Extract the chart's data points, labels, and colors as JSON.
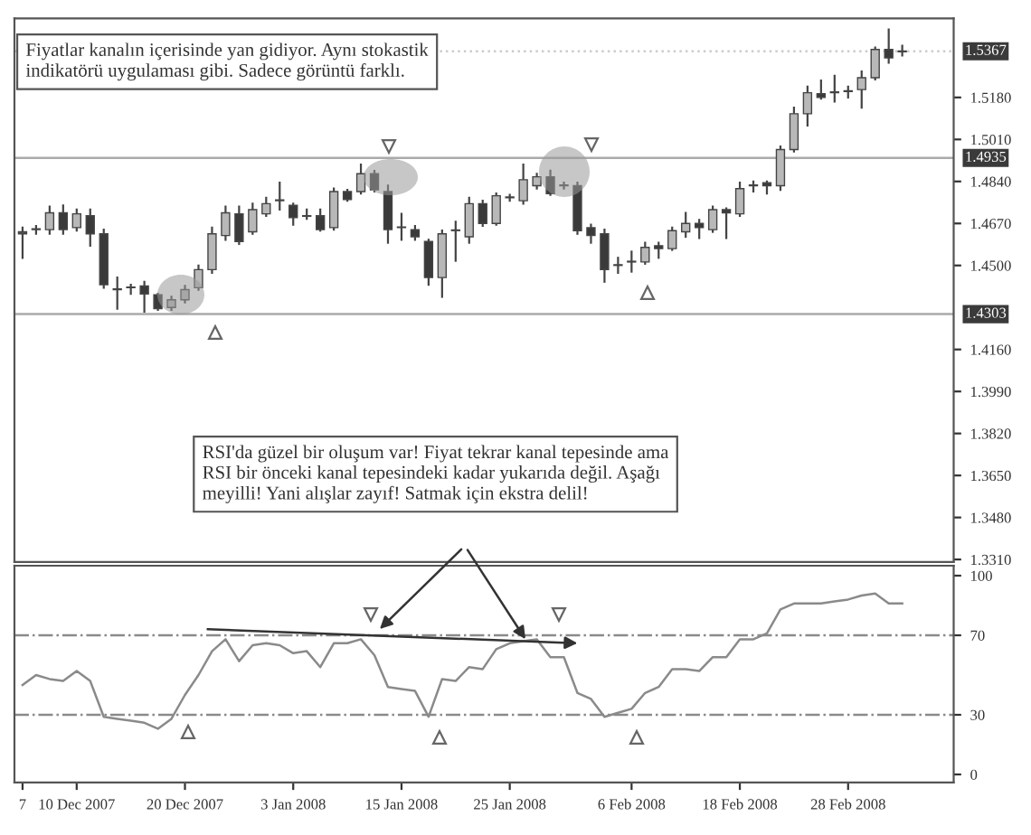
{
  "chart_data": [
    {
      "type": "candlestick",
      "ohlc": [
        [
          1.4628,
          1.4653,
          1.4531,
          1.4636
        ],
        [
          1.4645,
          1.466,
          1.4628,
          1.4648
        ],
        [
          1.4645,
          1.4738,
          1.4628,
          1.4713
        ],
        [
          1.4713,
          1.4743,
          1.4628,
          1.4645
        ],
        [
          1.4653,
          1.4726,
          1.4641,
          1.4709
        ],
        [
          1.4701,
          1.4726,
          1.458,
          1.4628
        ],
        [
          1.4628,
          1.4645,
          1.441,
          1.4422
        ],
        [
          1.4402,
          1.4451,
          1.4325,
          1.4405
        ],
        [
          1.441,
          1.4422,
          1.4385,
          1.4412
        ],
        [
          1.4417,
          1.4434,
          1.4313,
          1.4385
        ],
        [
          1.4381,
          1.4385,
          1.432,
          1.4325
        ],
        [
          1.433,
          1.4373,
          1.432,
          1.4361
        ],
        [
          1.4361,
          1.4417,
          1.435,
          1.4402
        ],
        [
          1.441,
          1.45,
          1.4402,
          1.4483
        ],
        [
          1.4483,
          1.4653,
          1.447,
          1.4628
        ],
        [
          1.4621,
          1.4738,
          1.4604,
          1.4713
        ],
        [
          1.4709,
          1.4738,
          1.4587,
          1.4597
        ],
        [
          1.4636,
          1.475,
          1.4628,
          1.4726
        ],
        [
          1.4709,
          1.4774,
          1.4701,
          1.475
        ],
        [
          1.4762,
          1.4835,
          1.4726,
          1.4765
        ],
        [
          1.4743,
          1.475,
          1.4665,
          1.4694
        ],
        [
          1.4701,
          1.4726,
          1.4689,
          1.4699
        ],
        [
          1.4701,
          1.4726,
          1.4641,
          1.4645
        ],
        [
          1.4653,
          1.4811,
          1.4645,
          1.4799
        ],
        [
          1.4799,
          1.4806,
          1.4762,
          1.4767
        ],
        [
          1.4799,
          1.4908,
          1.4791,
          1.4871
        ],
        [
          1.4871,
          1.4883,
          1.4799,
          1.4806
        ],
        [
          1.4799,
          1.4823,
          1.4592,
          1.4645
        ],
        [
          1.4653,
          1.4709,
          1.4604,
          1.4656
        ],
        [
          1.4645,
          1.466,
          1.4604,
          1.4616
        ],
        [
          1.4597,
          1.4604,
          1.4422,
          1.4451
        ],
        [
          1.4451,
          1.4641,
          1.4373,
          1.4628
        ],
        [
          1.4641,
          1.4677,
          1.4519,
          1.4644
        ],
        [
          1.4616,
          1.4774,
          1.4592,
          1.475
        ],
        [
          1.475,
          1.4762,
          1.466,
          1.467
        ],
        [
          1.467,
          1.4791,
          1.4665,
          1.4782
        ],
        [
          1.4774,
          1.4786,
          1.4762,
          1.4777
        ],
        [
          1.4762,
          1.4908,
          1.475,
          1.4847
        ],
        [
          1.4823,
          1.4871,
          1.4811,
          1.4859
        ],
        [
          1.4859,
          1.4884,
          1.4786,
          1.4791
        ],
        [
          1.4823,
          1.4835,
          1.4811,
          1.4826
        ],
        [
          1.4823,
          1.4835,
          1.4628,
          1.4641
        ],
        [
          1.4653,
          1.4665,
          1.4592,
          1.4621
        ],
        [
          1.4628,
          1.4645,
          1.4434,
          1.4483
        ],
        [
          1.45,
          1.4531,
          1.447,
          1.4503
        ],
        [
          1.4514,
          1.4556,
          1.4475,
          1.4517
        ],
        [
          1.4514,
          1.4592,
          1.4507,
          1.4573
        ],
        [
          1.458,
          1.4592,
          1.4531,
          1.4568
        ],
        [
          1.4568,
          1.4653,
          1.4563,
          1.4641
        ],
        [
          1.4636,
          1.4713,
          1.4616,
          1.467
        ],
        [
          1.467,
          1.4684,
          1.4611,
          1.4653
        ],
        [
          1.4645,
          1.4738,
          1.4636,
          1.4726
        ],
        [
          1.4726,
          1.4731,
          1.4611,
          1.4713
        ],
        [
          1.4709,
          1.4835,
          1.4701,
          1.4811
        ],
        [
          1.4823,
          1.484,
          1.4799,
          1.4826
        ],
        [
          1.4835,
          1.484,
          1.4791,
          1.4823
        ],
        [
          1.4823,
          1.4981,
          1.4806,
          1.4969
        ],
        [
          1.4969,
          1.5139,
          1.4961,
          1.5114
        ],
        [
          1.5114,
          1.5224,
          1.5066,
          1.5199
        ],
        [
          1.5195,
          1.5248,
          1.5175,
          1.518
        ],
        [
          1.5199,
          1.5268,
          1.5163,
          1.5202
        ],
        [
          1.5204,
          1.5224,
          1.518,
          1.5207
        ],
        [
          1.5212,
          1.5285,
          1.5139,
          1.526
        ],
        [
          1.526,
          1.5382,
          1.5253,
          1.5374
        ],
        [
          1.5374,
          1.5455,
          1.5321,
          1.534
        ],
        [
          1.5365,
          1.5389,
          1.535,
          1.5367
        ]
      ],
      "colors": [
        "#555555",
        "#555555",
        "#b8b8b8",
        "#3a3a3a",
        "#b8b8b8",
        "#3a3a3a",
        "#3a3a3a",
        "#555555",
        "#555555",
        "#3a3a3a",
        "#3a3a3a",
        "#b8b8b8",
        "#b8b8b8",
        "#b8b8b8",
        "#b8b8b8",
        "#b8b8b8",
        "#3a3a3a",
        "#b8b8b8",
        "#b8b8b8",
        "#555555",
        "#3a3a3a",
        "#555555",
        "#3a3a3a",
        "#b8b8b8",
        "#3a3a3a",
        "#b8b8b8",
        "#3a3a3a",
        "#3a3a3a",
        "#555555",
        "#3a3a3a",
        "#3a3a3a",
        "#b8b8b8",
        "#555555",
        "#b8b8b8",
        "#3a3a3a",
        "#b8b8b8",
        "#555555",
        "#b8b8b8",
        "#b8b8b8",
        "#3a3a3a",
        "#555555",
        "#3a3a3a",
        "#3a3a3a",
        "#3a3a3a",
        "#555555",
        "#555555",
        "#b8b8b8",
        "#3a3a3a",
        "#b8b8b8",
        "#b8b8b8",
        "#3a3a3a",
        "#b8b8b8",
        "#3a3a3a",
        "#b8b8b8",
        "#555555",
        "#3a3a3a",
        "#b8b8b8",
        "#b8b8b8",
        "#b8b8b8",
        "#3a3a3a",
        "#555555",
        "#555555",
        "#b8b8b8",
        "#b8b8b8",
        "#3a3a3a",
        "#555555"
      ],
      "ylim": [
        1.33,
        1.55
      ],
      "yticks": [
        {
          "value": 1.331,
          "label": "1.3310"
        },
        {
          "value": 1.348,
          "label": "1.3480"
        },
        {
          "value": 1.365,
          "label": "1.3650"
        },
        {
          "value": 1.382,
          "label": "1.3820"
        },
        {
          "value": 1.399,
          "label": "1.3990"
        },
        {
          "value": 1.416,
          "label": "1.4160"
        },
        {
          "value": 1.45,
          "label": "1.4500"
        },
        {
          "value": 1.467,
          "label": "1.4670"
        },
        {
          "value": 1.484,
          "label": "1.4840"
        },
        {
          "value": 1.501,
          "label": "1.5010"
        },
        {
          "value": 1.518,
          "label": "1.5180"
        }
      ],
      "ref_lines": [
        {
          "axis": "y",
          "value": 1.5367,
          "label": "1.5367",
          "color": "#cccccc",
          "line_style": "dotted"
        },
        {
          "axis": "y",
          "value": 1.4935,
          "label": "1.4935",
          "color": "#aaaaaa",
          "line_style": "solid"
        },
        {
          "axis": "y",
          "value": 1.4303,
          "label": "1.4303",
          "color": "#aaaaaa",
          "line_style": "solid"
        }
      ],
      "annotations": [
        "Fiyatlar kanalın içerisinde yan gidiyor. Aynı stokastik\nindikatörü uygulaması gibi. Sadece görüntü farklı.",
        "RSI'da güzel bir oluşum var! Fiyat tekrar kanal tepesinde ama\nRSI bir önceki kanal tepesindeki kadar yukarıda değil. Aşağı\nmeyilli! Yani alışlar zayıf! Satmak için ekstra delil!"
      ],
      "tick_labels": "y"
    },
    {
      "type": "line",
      "categories": [
        "7",
        null,
        null,
        null,
        "10 Dec 2007",
        null,
        null,
        null,
        null,
        null,
        null,
        null,
        "20 Dec 2007",
        null,
        null,
        null,
        null,
        null,
        null,
        null,
        "3 Jan 2008",
        null,
        null,
        null,
        null,
        null,
        null,
        null,
        "15 Jan 2008",
        null,
        null,
        null,
        null,
        null,
        null,
        null,
        "25 Jan 2008",
        null,
        null,
        null,
        null,
        null,
        null,
        null,
        null,
        "6 Feb 2008",
        null,
        null,
        null,
        null,
        null,
        null,
        null,
        "18 Feb 2008",
        null,
        null,
        null,
        null,
        null,
        null,
        null,
        "28 Feb 2008",
        null,
        null,
        null,
        null
      ],
      "series": [
        {
          "color": "#8a8a8a",
          "values": [
            45,
            50,
            48,
            47,
            52,
            47,
            29,
            28,
            27,
            26,
            23,
            28,
            40,
            50,
            62,
            68,
            57,
            65,
            66,
            65,
            61,
            62,
            54,
            66,
            66,
            68,
            60,
            44,
            43,
            42,
            29,
            48,
            47,
            54,
            53,
            63,
            66,
            67,
            68,
            59,
            59,
            41,
            38,
            29,
            31,
            33,
            41,
            44,
            53,
            53,
            52,
            59,
            59,
            68,
            68,
            71,
            83,
            86,
            86,
            86,
            87,
            88,
            90,
            91,
            86,
            86
          ]
        }
      ],
      "ylim": [
        -4,
        105
      ],
      "yticks": [
        0,
        30,
        70,
        100
      ],
      "ref_lines": [
        {
          "axis": "y",
          "value": 70,
          "color": "#8a8a8a",
          "line_style": "dashdot"
        },
        {
          "axis": "y",
          "value": 30,
          "color": "#8a8a8a",
          "line_style": "dashdot"
        }
      ]
    }
  ]
}
